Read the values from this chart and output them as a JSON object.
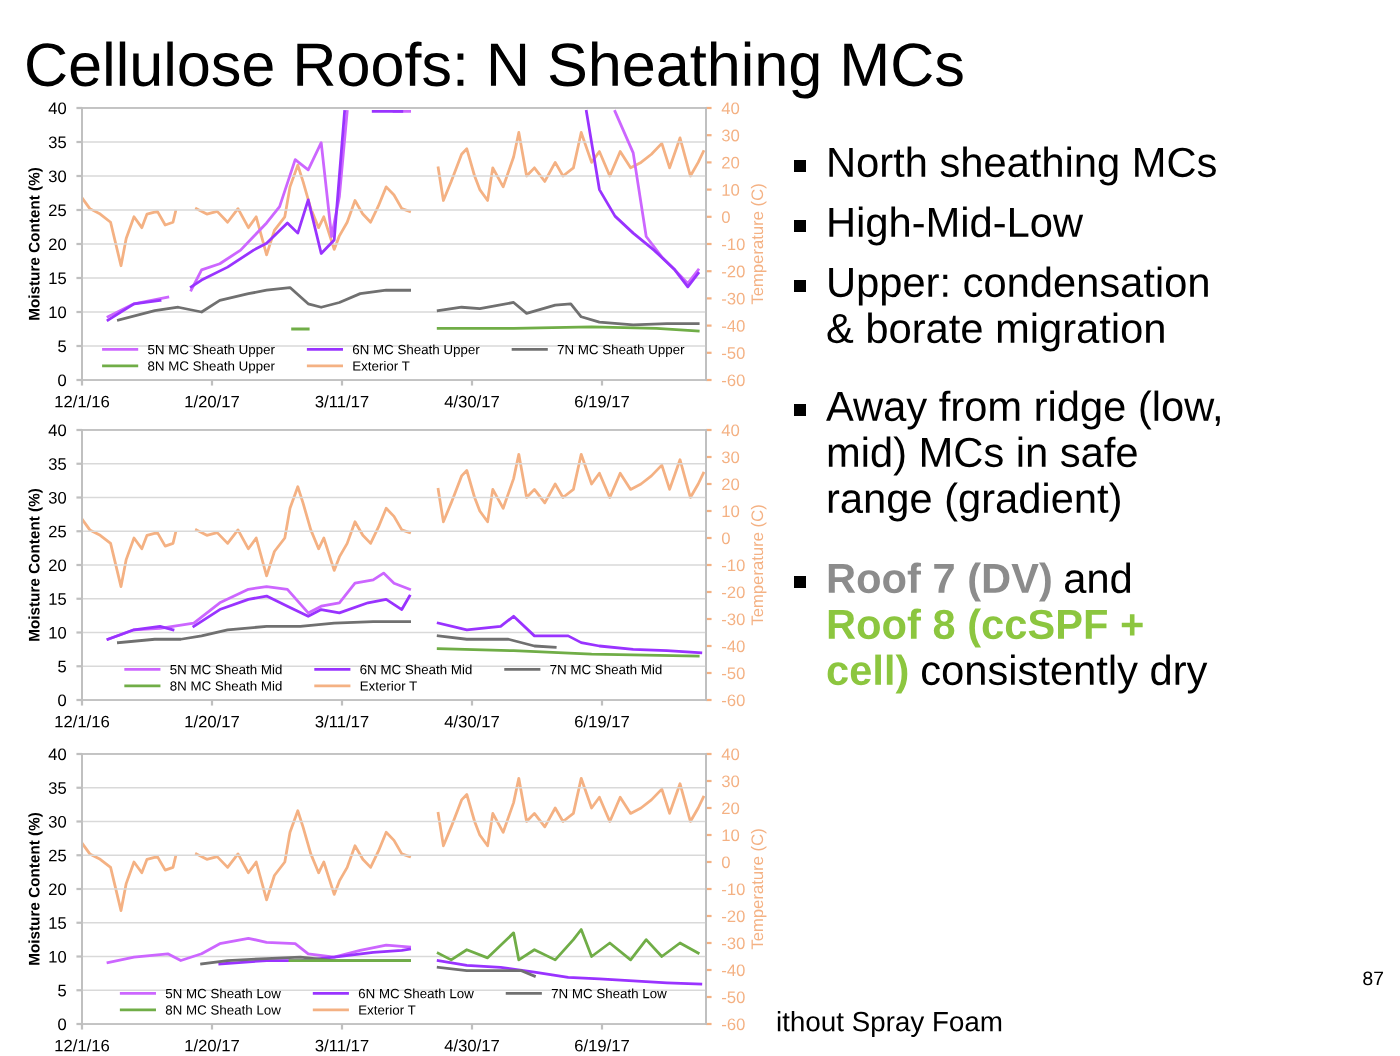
{
  "chart_data": [
    {
      "type": "line",
      "title": "Cellulose Roofs: N Sheathing MCs",
      "ylabel": "Moisture Content (%)",
      "y2label": "Temperature (C)",
      "xlim": [
        "2016-12-01",
        "2017-07-29"
      ],
      "xticks": [
        {
          "value": "2016-12-01",
          "label": "12/1/16"
        },
        {
          "value": "2017-01-20",
          "label": "1/20/17"
        },
        {
          "value": "2017-03-11",
          "label": "3/11/17"
        },
        {
          "value": "2017-04-30",
          "label": "4/30/17"
        },
        {
          "value": "2017-06-19",
          "label": "6/19/17"
        }
      ],
      "ylim": [
        0,
        40
      ],
      "yticks": [
        0,
        5,
        10,
        15,
        20,
        25,
        30,
        35,
        40
      ],
      "y2lim": [
        -60,
        40
      ],
      "y2ticks": [
        -60,
        -50,
        -40,
        -30,
        -20,
        -10,
        0,
        10,
        20,
        30,
        40
      ],
      "grid": "y",
      "legend": "bottom",
      "series": [
        {
          "name": "5N MC Sheath Upper",
          "color": "#cc66ff",
          "x": [
            "2016-12-11",
            "2016-12-21",
            "2017-01-03",
            "2017-01-07",
            "2017-01-12",
            "2017-01-16",
            "2017-01-23",
            "2017-01-31",
            "2017-02-05",
            "2017-02-10",
            "2017-02-15",
            "2017-02-21",
            "2017-02-26",
            "2017-03-03",
            "2017-03-07",
            "2017-03-10",
            "2017-03-13",
            "2017-03-16",
            "2017-03-31",
            "2017-04-06",
            "2017-04-20",
            "2017-06-24",
            "2017-07-01",
            "2017-07-06",
            "2017-07-12",
            "2017-07-17",
            "2017-07-22",
            "2017-07-26"
          ],
          "values": [
            9.3,
            11.2,
            12.2,
            null,
            13.2,
            16.2,
            17.1,
            19.1,
            21.1,
            23.1,
            25.5,
            32.4,
            30.9,
            34.9,
            21.1,
            27.0,
            39.5,
            null,
            39.5,
            39.5,
            null,
            39.5,
            33.4,
            21.1,
            18.1,
            16.2,
            14.2,
            16.2
          ]
        },
        {
          "name": "6N MC Sheath Upper",
          "color": "#9933ff",
          "x": [
            "2016-12-11",
            "2016-12-21",
            "2016-12-31",
            "2017-01-07",
            "2017-01-12",
            "2017-01-16",
            "2017-01-26",
            "2017-02-05",
            "2017-02-10",
            "2017-02-18",
            "2017-02-22",
            "2017-02-26",
            "2017-03-03",
            "2017-03-08",
            "2017-03-12",
            "2017-03-18",
            "2017-03-23",
            "2017-04-03",
            "2017-04-20",
            "2017-06-13",
            "2017-06-18",
            "2017-06-24",
            "2017-07-01",
            "2017-07-09",
            "2017-07-17",
            "2017-07-22",
            "2017-07-26"
          ],
          "values": [
            8.8,
            11.2,
            11.7,
            null,
            13.7,
            14.7,
            16.6,
            19.1,
            20.1,
            23.1,
            21.6,
            26.5,
            18.6,
            20.6,
            39.5,
            null,
            39.5,
            39.5,
            null,
            39.5,
            28.0,
            24.1,
            21.6,
            19.1,
            16.2,
            13.7,
            15.7
          ]
        },
        {
          "name": "7N MC Sheath Upper",
          "color": "#707070",
          "x": [
            "2016-12-15",
            "2016-12-29",
            "2017-01-07",
            "2017-01-16",
            "2017-01-23",
            "2017-02-03",
            "2017-02-10",
            "2017-02-19",
            "2017-02-26",
            "2017-03-03",
            "2017-03-10",
            "2017-03-18",
            "2017-03-28",
            "2017-04-06",
            "2017-04-11",
            "2017-04-17",
            "2017-04-26",
            "2017-05-03",
            "2017-05-16",
            "2017-05-21",
            "2017-06-01",
            "2017-06-07",
            "2017-06-11",
            "2017-06-18",
            "2017-07-01",
            "2017-07-14",
            "2017-07-26"
          ],
          "values": [
            8.8,
            10.2,
            10.7,
            10.0,
            11.7,
            12.7,
            13.2,
            13.6,
            11.2,
            10.7,
            11.4,
            12.7,
            13.2,
            13.2,
            null,
            10.2,
            10.7,
            10.5,
            11.4,
            9.8,
            11.0,
            11.2,
            9.3,
            8.5,
            8.1,
            8.3,
            8.3
          ]
        },
        {
          "name": "8N MC Sheath Upper",
          "color": "#70ad47",
          "x": [
            "2017-02-20",
            "2017-02-26",
            "2017-03-01",
            "2017-04-17",
            "2017-05-16",
            "2017-06-15",
            "2017-07-10",
            "2017-07-26"
          ],
          "values": [
            7.5,
            7.5,
            null,
            7.6,
            7.6,
            7.8,
            7.6,
            7.2
          ]
        },
        {
          "name": "Exterior T",
          "color": "#f4b183",
          "axis": "y2",
          "x": [
            "2016-12-01",
            "2016-12-04",
            "2016-12-08",
            "2016-12-12",
            "2016-12-16",
            "2016-12-18",
            "2016-12-21",
            "2016-12-24",
            "2016-12-26",
            "2016-12-30",
            "2017-01-02",
            "2017-01-05",
            "2017-01-06",
            "2017-01-08",
            "2017-01-09",
            "2017-01-11",
            "2017-01-12",
            "2017-01-14",
            "2017-01-18",
            "2017-01-22",
            "2017-01-26",
            "2017-01-30",
            "2017-02-03",
            "2017-02-06",
            "2017-02-10",
            "2017-02-13",
            "2017-02-17",
            "2017-02-19",
            "2017-02-22",
            "2017-02-24",
            "2017-02-27",
            "2017-03-02",
            "2017-03-04",
            "2017-03-08",
            "2017-03-10",
            "2017-03-13",
            "2017-03-16",
            "2017-03-19",
            "2017-03-22",
            "2017-03-25",
            "2017-03-28",
            "2017-03-31",
            "2017-04-03",
            "2017-04-06",
            "2017-04-11",
            "2017-04-17",
            "2017-04-19",
            "2017-04-22",
            "2017-04-26",
            "2017-04-28",
            "2017-05-01",
            "2017-05-03",
            "2017-05-06",
            "2017-05-08",
            "2017-05-12",
            "2017-05-16",
            "2017-05-18",
            "2017-05-21",
            "2017-05-24",
            "2017-05-28",
            "2017-06-01",
            "2017-06-04",
            "2017-06-08",
            "2017-06-11",
            "2017-06-15",
            "2017-06-18",
            "2017-06-22",
            "2017-06-26",
            "2017-06-30",
            "2017-07-04",
            "2017-07-08",
            "2017-07-12",
            "2017-07-15",
            "2017-07-19",
            "2017-07-23",
            "2017-07-26",
            "2017-07-28"
          ],
          "values": [
            7,
            3,
            1,
            -2,
            -18,
            -8,
            0,
            -4,
            1,
            2,
            -3,
            -2,
            2,
            null,
            null,
            null,
            null,
            3,
            1,
            2,
            -2,
            3,
            -4,
            0,
            -14,
            -5,
            0,
            11,
            19,
            13,
            3,
            -4,
            0,
            -12,
            -7,
            -2,
            6,
            1,
            -2,
            4,
            11,
            8,
            3,
            2,
            null,
            18,
            6,
            13,
            23,
            25,
            15,
            10,
            6,
            18,
            11,
            22,
            31,
            15,
            18,
            13,
            20,
            15,
            18,
            31,
            20,
            24,
            15,
            24,
            18,
            20,
            23,
            27,
            18,
            29,
            15,
            20,
            24
          ]
        }
      ]
    },
    {
      "type": "line",
      "ylabel": "Moisture Content (%)",
      "y2label": "Temperature (C)",
      "xlim": [
        "2016-12-01",
        "2017-07-29"
      ],
      "xticks": [
        {
          "value": "2016-12-01",
          "label": "12/1/16"
        },
        {
          "value": "2017-01-20",
          "label": "1/20/17"
        },
        {
          "value": "2017-03-11",
          "label": "3/11/17"
        },
        {
          "value": "2017-04-30",
          "label": "4/30/17"
        },
        {
          "value": "2017-06-19",
          "label": "6/19/17"
        }
      ],
      "ylim": [
        0,
        40
      ],
      "yticks": [
        0,
        5,
        10,
        15,
        20,
        25,
        30,
        35,
        40
      ],
      "y2lim": [
        -60,
        40
      ],
      "y2ticks": [
        -60,
        -50,
        -40,
        -30,
        -20,
        -10,
        0,
        10,
        20,
        30,
        40
      ],
      "grid": "y",
      "legend": "bottom",
      "series": [
        {
          "name": "5N MC Sheath Mid",
          "color": "#cc66ff",
          "x": [
            "2016-12-11",
            "2016-12-21",
            "2016-12-31",
            "2017-01-13",
            "2017-01-23",
            "2017-02-03",
            "2017-02-10",
            "2017-02-18",
            "2017-02-26",
            "2017-03-03",
            "2017-03-10",
            "2017-03-16",
            "2017-03-23",
            "2017-03-27",
            "2017-03-31",
            "2017-04-06"
          ],
          "values": [
            9.0,
            10.4,
            10.6,
            11.4,
            14.4,
            16.4,
            16.8,
            16.4,
            12.9,
            13.9,
            14.4,
            17.3,
            17.8,
            18.8,
            17.3,
            16.4
          ]
        },
        {
          "name": "6N MC Sheath Mid",
          "color": "#9933ff",
          "x": [
            "2016-12-11",
            "2016-12-21",
            "2016-12-31",
            "2017-01-05",
            "2017-01-08",
            "2017-01-13",
            "2017-01-23",
            "2017-02-03",
            "2017-02-10",
            "2017-02-18",
            "2017-02-26",
            "2017-03-03",
            "2017-03-10",
            "2017-03-21",
            "2017-03-28",
            "2017-04-03",
            "2017-04-06",
            "2017-04-11",
            "2017-04-17",
            "2017-04-28",
            "2017-05-11",
            "2017-05-16",
            "2017-05-24",
            "2017-06-06",
            "2017-06-11",
            "2017-06-18",
            "2017-07-01",
            "2017-07-14",
            "2017-07-27"
          ],
          "values": [
            9.0,
            10.4,
            10.9,
            10.4,
            null,
            10.9,
            13.4,
            14.9,
            15.4,
            13.9,
            12.4,
            13.4,
            12.9,
            14.4,
            14.9,
            13.4,
            15.4,
            null,
            11.4,
            10.4,
            10.9,
            12.4,
            9.5,
            9.5,
            8.5,
            8.0,
            7.5,
            7.3,
            7.0
          ]
        },
        {
          "name": "7N MC Sheath Mid",
          "color": "#707070",
          "x": [
            "2016-12-15",
            "2016-12-29",
            "2017-01-08",
            "2017-01-16",
            "2017-01-26",
            "2017-02-10",
            "2017-02-23",
            "2017-03-08",
            "2017-03-23",
            "2017-04-06",
            "2017-04-11",
            "2017-04-17",
            "2017-04-28",
            "2017-05-14",
            "2017-05-24",
            "2017-06-01"
          ],
          "values": [
            8.5,
            9.0,
            9.0,
            9.5,
            10.4,
            10.9,
            10.9,
            11.4,
            11.6,
            11.6,
            null,
            9.5,
            9.0,
            9.0,
            8.0,
            7.8
          ]
        },
        {
          "name": "8N MC Sheath Mid",
          "color": "#70ad47",
          "x": [
            "2017-04-17",
            "2017-05-16",
            "2017-06-15",
            "2017-07-26"
          ],
          "values": [
            7.6,
            7.3,
            6.8,
            6.5
          ]
        },
        {
          "name": "Exterior T",
          "color": "#f4b183",
          "axis": "y2",
          "x": [
            "2016-12-01",
            "2016-12-04",
            "2016-12-08",
            "2016-12-12",
            "2016-12-16",
            "2016-12-18",
            "2016-12-21",
            "2016-12-24",
            "2016-12-26",
            "2016-12-30",
            "2017-01-02",
            "2017-01-05",
            "2017-01-06",
            "2017-01-08",
            "2017-01-09",
            "2017-01-11",
            "2017-01-12",
            "2017-01-14",
            "2017-01-18",
            "2017-01-22",
            "2017-01-26",
            "2017-01-30",
            "2017-02-03",
            "2017-02-06",
            "2017-02-10",
            "2017-02-13",
            "2017-02-17",
            "2017-02-19",
            "2017-02-22",
            "2017-02-24",
            "2017-02-27",
            "2017-03-02",
            "2017-03-04",
            "2017-03-08",
            "2017-03-10",
            "2017-03-13",
            "2017-03-16",
            "2017-03-19",
            "2017-03-22",
            "2017-03-25",
            "2017-03-28",
            "2017-03-31",
            "2017-04-03",
            "2017-04-06",
            "2017-04-11",
            "2017-04-17",
            "2017-04-19",
            "2017-04-22",
            "2017-04-26",
            "2017-04-28",
            "2017-05-01",
            "2017-05-03",
            "2017-05-06",
            "2017-05-08",
            "2017-05-12",
            "2017-05-16",
            "2017-05-18",
            "2017-05-21",
            "2017-05-24",
            "2017-05-28",
            "2017-06-01",
            "2017-06-04",
            "2017-06-08",
            "2017-06-11",
            "2017-06-15",
            "2017-06-18",
            "2017-06-22",
            "2017-06-26",
            "2017-06-30",
            "2017-07-04",
            "2017-07-08",
            "2017-07-12",
            "2017-07-15",
            "2017-07-19",
            "2017-07-23",
            "2017-07-26",
            "2017-07-28"
          ],
          "values": [
            7,
            3,
            1,
            -2,
            -18,
            -8,
            0,
            -4,
            1,
            2,
            -3,
            -2,
            2,
            null,
            null,
            null,
            null,
            3,
            1,
            2,
            -2,
            3,
            -4,
            0,
            -14,
            -5,
            0,
            11,
            19,
            13,
            3,
            -4,
            0,
            -12,
            -7,
            -2,
            6,
            1,
            -2,
            4,
            11,
            8,
            3,
            2,
            null,
            18,
            6,
            13,
            23,
            25,
            15,
            10,
            6,
            18,
            11,
            22,
            31,
            15,
            18,
            13,
            20,
            15,
            18,
            31,
            20,
            24,
            15,
            24,
            18,
            20,
            23,
            27,
            18,
            29,
            15,
            20,
            24
          ]
        }
      ]
    },
    {
      "type": "line",
      "ylabel": "Moisture Content (%)",
      "y2label": "Temperature (C)",
      "xlim": [
        "2016-12-01",
        "2017-07-29"
      ],
      "xticks": [
        {
          "value": "2016-12-01",
          "label": "12/1/16"
        },
        {
          "value": "2017-01-20",
          "label": "1/20/17"
        },
        {
          "value": "2017-03-11",
          "label": "3/11/17"
        },
        {
          "value": "2017-04-30",
          "label": "4/30/17"
        },
        {
          "value": "2017-06-19",
          "label": "6/19/17"
        }
      ],
      "ylim": [
        0,
        40
      ],
      "yticks": [
        0,
        5,
        10,
        15,
        20,
        25,
        30,
        35,
        40
      ],
      "y2lim": [
        -60,
        40
      ],
      "y2ticks": [
        -60,
        -50,
        -40,
        -30,
        -20,
        -10,
        0,
        10,
        20,
        30,
        40
      ],
      "grid": "y",
      "legend": "bottom",
      "series": [
        {
          "name": "5N MC Sheath Low",
          "color": "#cc66ff",
          "x": [
            "2016-12-11",
            "2016-12-21",
            "2017-01-03",
            "2017-01-08",
            "2017-01-16",
            "2017-01-23",
            "2017-02-03",
            "2017-02-10",
            "2017-02-21",
            "2017-02-26",
            "2017-03-08",
            "2017-03-18",
            "2017-03-28",
            "2017-04-06"
          ],
          "values": [
            9.1,
            9.9,
            10.4,
            9.4,
            10.4,
            11.9,
            12.7,
            12.1,
            11.9,
            10.4,
            9.9,
            10.9,
            11.7,
            11.4
          ]
        },
        {
          "name": "6N MC Sheath Low",
          "color": "#9933ff",
          "x": [
            "2017-01-23",
            "2017-02-10",
            "2017-02-23",
            "2017-03-08",
            "2017-03-23",
            "2017-04-03",
            "2017-04-06",
            "2017-04-11",
            "2017-04-17",
            "2017-04-28",
            "2017-05-11",
            "2017-05-24",
            "2017-06-06",
            "2017-06-18",
            "2017-07-01",
            "2017-07-14",
            "2017-07-27"
          ],
          "values": [
            8.9,
            9.4,
            9.4,
            9.9,
            10.6,
            10.9,
            11.1,
            null,
            9.4,
            8.7,
            8.4,
            7.7,
            6.9,
            6.7,
            6.4,
            6.1,
            5.9
          ]
        },
        {
          "name": "7N MC Sheath Low",
          "color": "#707070",
          "x": [
            "2017-01-16",
            "2017-01-26",
            "2017-02-10",
            "2017-02-23",
            "2017-03-08",
            "2017-03-23",
            "2017-04-06",
            "2017-04-11",
            "2017-04-17",
            "2017-04-28",
            "2017-05-19",
            "2017-05-24"
          ],
          "values": [
            8.9,
            9.4,
            9.7,
            9.9,
            9.4,
            9.4,
            9.4,
            null,
            8.4,
            7.9,
            7.9,
            7.1
          ]
        },
        {
          "name": "8N MC Sheath Low",
          "color": "#70ad47",
          "x": [
            "2017-02-19",
            "2017-03-08",
            "2017-03-23",
            "2017-04-06",
            "2017-04-11",
            "2017-04-17",
            "2017-04-22",
            "2017-04-28",
            "2017-05-06",
            "2017-05-16",
            "2017-05-18",
            "2017-05-24",
            "2017-06-01",
            "2017-06-08",
            "2017-06-11",
            "2017-06-15",
            "2017-06-22",
            "2017-06-30",
            "2017-07-06",
            "2017-07-12",
            "2017-07-19",
            "2017-07-26"
          ],
          "values": [
            9.4,
            9.4,
            9.4,
            9.4,
            null,
            10.5,
            9.5,
            11.0,
            9.8,
            13.5,
            9.5,
            11.0,
            9.5,
            12.5,
            14.0,
            10.0,
            12.0,
            9.5,
            12.5,
            10.0,
            12.0,
            10.5
          ]
        },
        {
          "name": "Exterior T",
          "color": "#f4b183",
          "axis": "y2",
          "x": [
            "2016-12-01",
            "2016-12-04",
            "2016-12-08",
            "2016-12-12",
            "2016-12-16",
            "2016-12-18",
            "2016-12-21",
            "2016-12-24",
            "2016-12-26",
            "2016-12-30",
            "2017-01-02",
            "2017-01-05",
            "2017-01-06",
            "2017-01-08",
            "2017-01-09",
            "2017-01-11",
            "2017-01-12",
            "2017-01-14",
            "2017-01-18",
            "2017-01-22",
            "2017-01-26",
            "2017-01-30",
            "2017-02-03",
            "2017-02-06",
            "2017-02-10",
            "2017-02-13",
            "2017-02-17",
            "2017-02-19",
            "2017-02-22",
            "2017-02-24",
            "2017-02-27",
            "2017-03-02",
            "2017-03-04",
            "2017-03-08",
            "2017-03-10",
            "2017-03-13",
            "2017-03-16",
            "2017-03-19",
            "2017-03-22",
            "2017-03-25",
            "2017-03-28",
            "2017-03-31",
            "2017-04-03",
            "2017-04-06",
            "2017-04-11",
            "2017-04-17",
            "2017-04-19",
            "2017-04-22",
            "2017-04-26",
            "2017-04-28",
            "2017-05-01",
            "2017-05-03",
            "2017-05-06",
            "2017-05-08",
            "2017-05-12",
            "2017-05-16",
            "2017-05-18",
            "2017-05-21",
            "2017-05-24",
            "2017-05-28",
            "2017-06-01",
            "2017-06-04",
            "2017-06-08",
            "2017-06-11",
            "2017-06-15",
            "2017-06-18",
            "2017-06-22",
            "2017-06-26",
            "2017-06-30",
            "2017-07-04",
            "2017-07-08",
            "2017-07-12",
            "2017-07-15",
            "2017-07-19",
            "2017-07-23",
            "2017-07-26",
            "2017-07-28"
          ],
          "values": [
            7,
            3,
            1,
            -2,
            -18,
            -8,
            0,
            -4,
            1,
            2,
            -3,
            -2,
            2,
            null,
            null,
            null,
            null,
            3,
            1,
            2,
            -2,
            3,
            -4,
            0,
            -14,
            -5,
            0,
            11,
            19,
            13,
            3,
            -4,
            0,
            -12,
            -7,
            -2,
            6,
            1,
            -2,
            4,
            11,
            8,
            3,
            2,
            null,
            18,
            6,
            13,
            23,
            25,
            15,
            10,
            6,
            18,
            11,
            22,
            31,
            15,
            18,
            13,
            20,
            15,
            18,
            31,
            20,
            24,
            15,
            24,
            18,
            20,
            23,
            27,
            18,
            29,
            15,
            20,
            24
          ]
        }
      ]
    },
    {
      "type": "other",
      "annotations": [
        "North sheathing MCs",
        "High-Mid-Low",
        "Upper: condensation\n& borate migration",
        "Away from ridge (low,\nmid) MCs in safe\nrange (gradient)",
        "Roof 7 (DV)",
        "and",
        "Roof 8 (ccSPF +\ncell)",
        "consistently dry",
        "ithout Spray Foam",
        "87"
      ]
    }
  ]
}
